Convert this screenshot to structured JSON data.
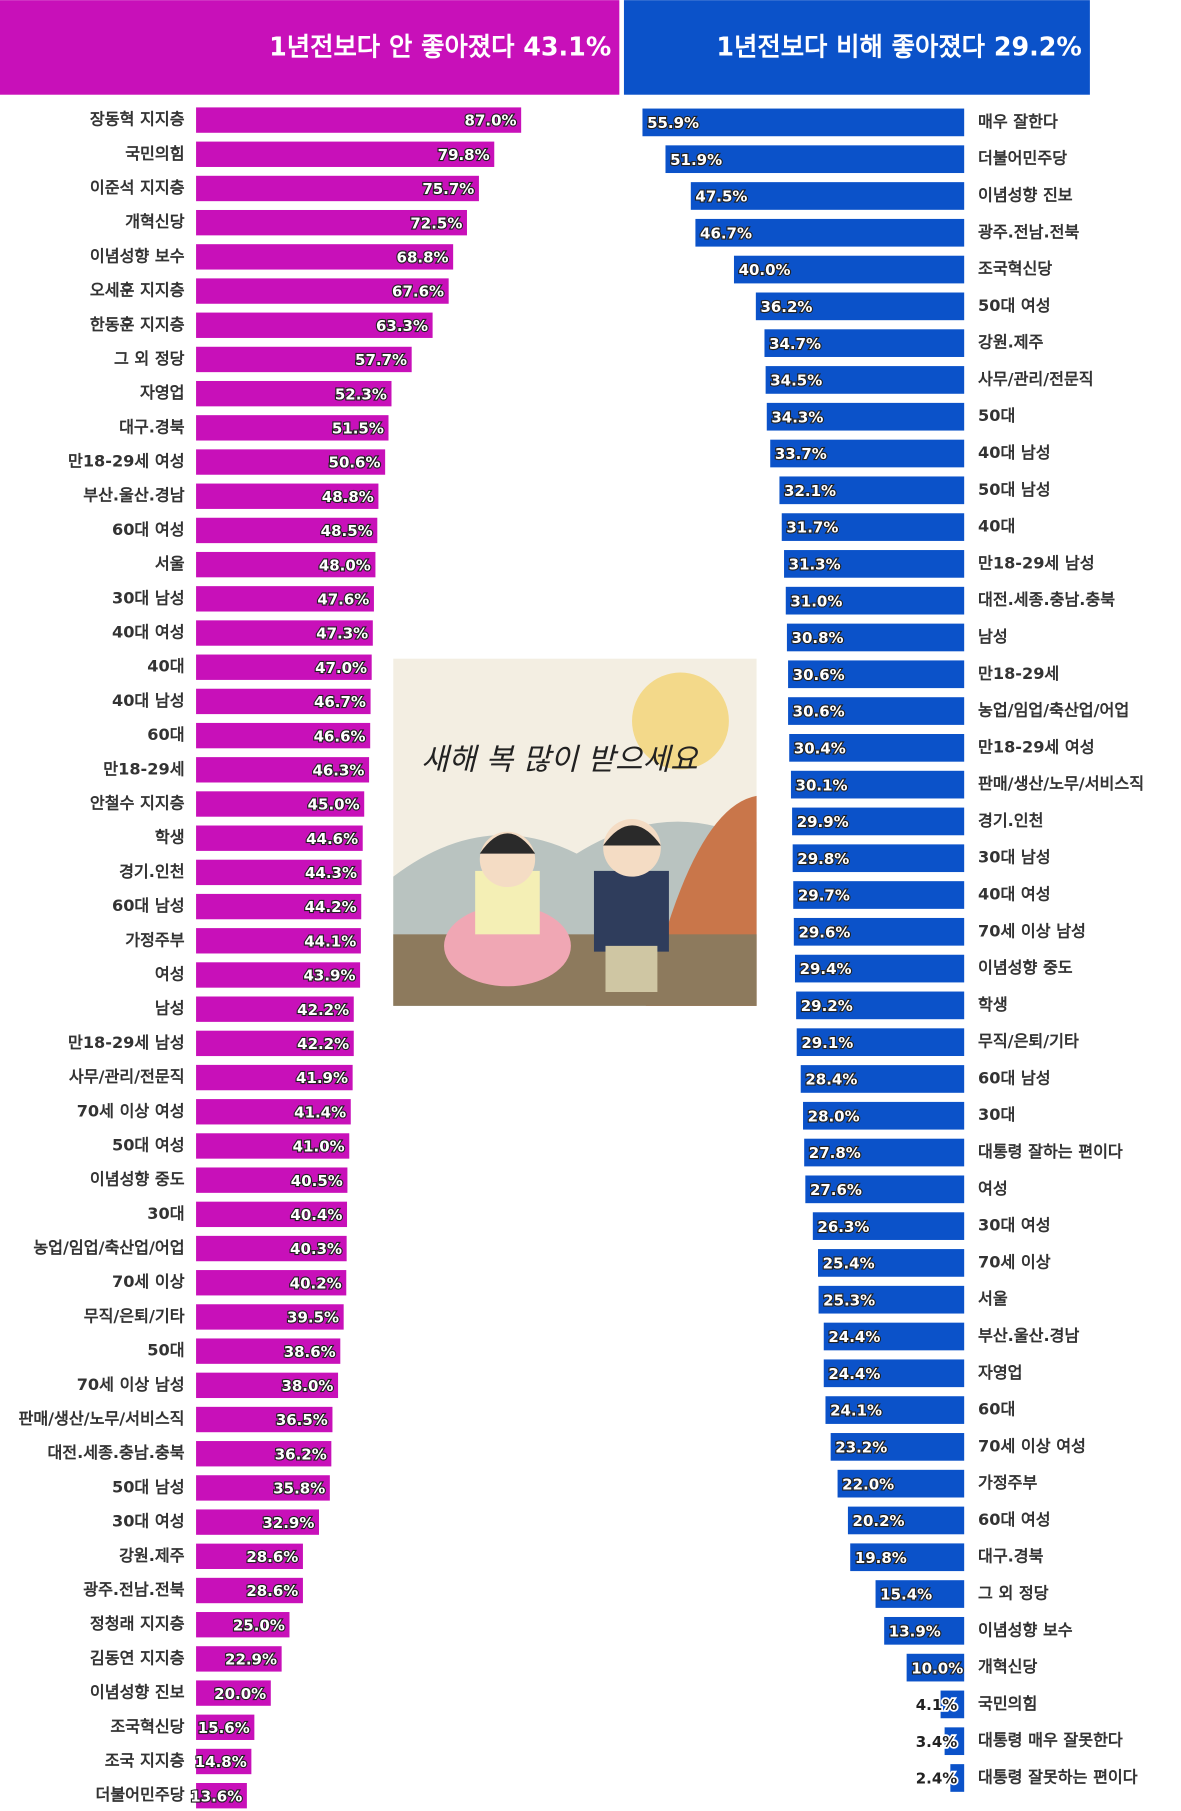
{
  "chart_data": [
    {
      "type": "bar",
      "title": "1년전보다 안 좋아졌다 43.1%",
      "color": "#c810b9",
      "categories": [
        "장동혁 지지층",
        "국민의힘",
        "이준석 지지층",
        "개혁신당",
        "이념성향 보수",
        "오세훈 지지층",
        "한동훈 지지층",
        "그 외 정당",
        "자영업",
        "대구.경북",
        "만18-29세 여성",
        "부산.울산.경남",
        "60대 여성",
        "서울",
        "30대 남성",
        "40대 여성",
        "40대",
        "40대 남성",
        "60대",
        "만18-29세",
        "안철수 지지층",
        "학생",
        "경기.인천",
        "60대 남성",
        "가정주부",
        "여성",
        "남성",
        "만18-29세 남성",
        "사무/관리/전문직",
        "70세 이상 여성",
        "50대 여성",
        "이념성향 중도",
        "30대",
        "농업/임업/축산업/어업",
        "70세 이상",
        "무직/은퇴/기타",
        "50대",
        "70세 이상 남성",
        "판매/생산/노무/서비스직",
        "대전.세종.충남.충북",
        "50대 남성",
        "30대 여성",
        "강원.제주",
        "광주.전남.전북",
        "정청래 지지층",
        "김동연 지지층",
        "이념성향 진보",
        "조국혁신당",
        "조국 지지층",
        "더불어민주당"
      ],
      "values": [
        87.0,
        79.8,
        75.7,
        72.5,
        68.8,
        67.6,
        63.3,
        57.7,
        52.3,
        51.5,
        50.6,
        48.8,
        48.5,
        48.0,
        47.6,
        47.3,
        47.0,
        46.7,
        46.6,
        46.3,
        45.0,
        44.6,
        44.3,
        44.2,
        44.1,
        43.9,
        42.2,
        42.2,
        41.9,
        41.4,
        41.0,
        40.5,
        40.4,
        40.3,
        40.2,
        39.5,
        38.6,
        38.0,
        36.5,
        36.2,
        35.8,
        32.9,
        28.6,
        28.6,
        25.0,
        22.9,
        20.0,
        15.6,
        14.8,
        13.6
      ],
      "value_labels": [
        "87.0%",
        "79.8%",
        "75.7%",
        "72.5%",
        "68.8%",
        "67.6%",
        "63.3%",
        "57.7%",
        "52.3%",
        "51.5%",
        "50.6%",
        "48.8%",
        "48.5%",
        "48.0%",
        "47.6%",
        "47.3%",
        "47.0%",
        "46.7%",
        "46.6%",
        "46.3%",
        "45.0%",
        "44.6%",
        "44.3%",
        "44.2%",
        "44.1%",
        "43.9%",
        "42.2%",
        "42.2%",
        "41.9%",
        "41.4%",
        "41.0%",
        "40.5%",
        "40.4%",
        "40.3%",
        "40.2%",
        "39.5%",
        "38.6%",
        "38.0%",
        "36.5%",
        "36.2%",
        "35.8%",
        "32.9%",
        "28.6%",
        "28.6%",
        "25.0%",
        "22.9%",
        "20.0%",
        "15.6%",
        "14.8%",
        "13.6%"
      ]
    },
    {
      "type": "bar",
      "title": "1년전보다 비해 좋아졌다 29.2%",
      "color": "#0b52c9",
      "categories": [
        "매우 잘한다",
        "더불어민주당",
        "이념성향 진보",
        "광주.전남.전북",
        "조국혁신당",
        "50대 여성",
        "강원.제주",
        "사무/관리/전문직",
        "50대",
        "40대 남성",
        "50대 남성",
        "40대",
        "만18-29세 남성",
        "대전.세종.충남.충북",
        "남성",
        "만18-29세",
        "농업/임업/축산업/어업",
        "만18-29세 여성",
        "판매/생산/노무/서비스직",
        "경기.인천",
        "30대 남성",
        "40대 여성",
        "70세 이상 남성",
        "이념성향 중도",
        "학생",
        "무직/은퇴/기타",
        "60대 남성",
        "30대",
        "대통령 잘하는 편이다",
        "여성",
        "30대 여성",
        "70세 이상",
        "서울",
        "부산.울산.경남",
        "자영업",
        "60대",
        "70세 이상 여성",
        "가정주부",
        "60대 여성",
        "대구.경북",
        "그 외 정당",
        "이념성향 보수",
        "개혁신당",
        "국민의힘",
        "대통령 매우 잘못한다",
        "대통령 잘못하는 편이다"
      ],
      "values": [
        55.9,
        51.9,
        47.5,
        46.7,
        40.0,
        36.2,
        34.7,
        34.5,
        34.3,
        33.7,
        32.1,
        31.7,
        31.3,
        31.0,
        30.8,
        30.6,
        30.6,
        30.4,
        30.1,
        29.9,
        29.8,
        29.7,
        29.6,
        29.4,
        29.2,
        29.1,
        28.4,
        28.0,
        27.8,
        27.6,
        26.3,
        25.4,
        25.3,
        24.4,
        24.4,
        24.1,
        23.2,
        22.0,
        20.2,
        19.8,
        15.4,
        13.9,
        10.0,
        4.1,
        3.4,
        2.4
      ],
      "value_labels": [
        "55.9%",
        "51.9%",
        "47.5%",
        "46.7%",
        "40.0%",
        "36.2%",
        "34.7%",
        "34.5%",
        "34.3%",
        "33.7%",
        "32.1%",
        "31.7%",
        "31.3%",
        "31.0%",
        "30.8%",
        "30.6%",
        "30.6%",
        "30.4%",
        "30.1%",
        "29.9%",
        "29.8%",
        "29.7%",
        "29.6%",
        "29.4%",
        "29.2%",
        "29.1%",
        "28.4%",
        "28.0%",
        "27.8%",
        "27.6%",
        "26.3%",
        "25.4%",
        "25.3%",
        "24.4%",
        "24.4%",
        "24.1%",
        "23.2%",
        "22.0%",
        "20.2%",
        "19.8%",
        "15.4%",
        "13.9%",
        "10.0%",
        "4.1%",
        "3.4%",
        "2.4%"
      ]
    }
  ],
  "illustration": {
    "text": "새해 복 많이 받으세요"
  }
}
